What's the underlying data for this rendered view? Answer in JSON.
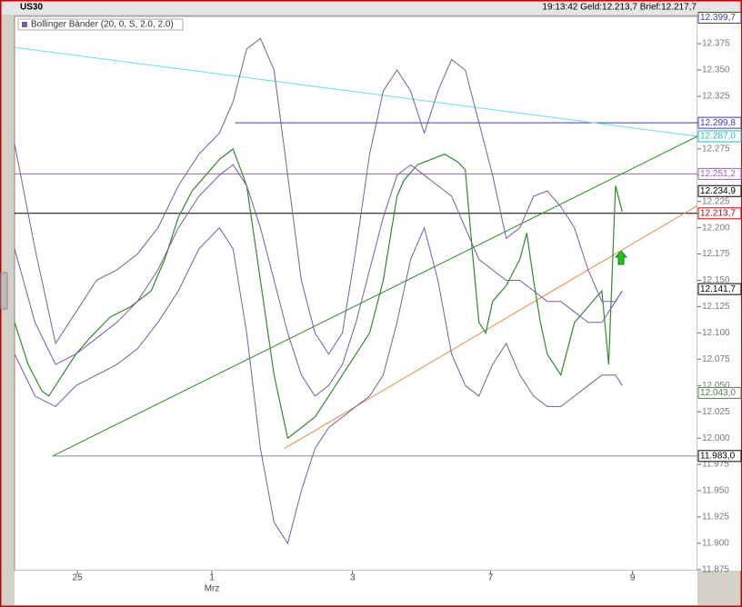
{
  "header": {
    "symbol": "US30",
    "status": "19:13:42  Geld:12.213,7  Brief:12.217,7"
  },
  "chart_data": {
    "type": "line",
    "indicator_label": "Bollinger Bänder (20, 0, S, 2.0, 2.0)",
    "xlim": [
      0,
      100
    ],
    "ylim": [
      11874,
      12401
    ],
    "xticks": [
      {
        "value": 9.2,
        "label": "25"
      },
      {
        "value": 28.9,
        "label": "1"
      },
      {
        "value": 49.5,
        "label": "3"
      },
      {
        "value": 69.7,
        "label": "7"
      },
      {
        "value": 90.5,
        "label": "9"
      }
    ],
    "month_label": "Mrz",
    "yticks": [
      {
        "value": 11875,
        "label": "11.875"
      },
      {
        "value": 11900,
        "label": "11.900"
      },
      {
        "value": 11925,
        "label": "11.925"
      },
      {
        "value": 11950,
        "label": "11.950"
      },
      {
        "value": 11975,
        "label": "11.975"
      },
      {
        "value": 12000,
        "label": "12.000"
      },
      {
        "value": 12025,
        "label": "12.025"
      },
      {
        "value": 12050,
        "label": "12.050"
      },
      {
        "value": 12075,
        "label": "12.075"
      },
      {
        "value": 12100,
        "label": "12.100"
      },
      {
        "value": 12125,
        "label": "12.125"
      },
      {
        "value": 12150,
        "label": "12.150"
      },
      {
        "value": 12175,
        "label": "12.175"
      },
      {
        "value": 12200,
        "label": "12.200"
      },
      {
        "value": 12225,
        "label": "12.225"
      },
      {
        "value": 12250,
        "label": "12.250"
      },
      {
        "value": 12275,
        "label": "12.275"
      },
      {
        "value": 12300,
        "label": "12.300"
      },
      {
        "value": 12325,
        "label": "12.325"
      },
      {
        "value": 12350,
        "label": "12.350"
      },
      {
        "value": 12375,
        "label": "12.375"
      }
    ],
    "series": [
      {
        "color": "#2e8b2e",
        "x": [
          0,
          2,
          4,
          5,
          7,
          9,
          11,
          14,
          17,
          20,
          22,
          24,
          26,
          28,
          30,
          32,
          34,
          36,
          38,
          40,
          42,
          44,
          46,
          48,
          50,
          52,
          54,
          56,
          57,
          59,
          61,
          63,
          65,
          66,
          67,
          68,
          69,
          70,
          72,
          74,
          75,
          76,
          77,
          78,
          80,
          82,
          84,
          86,
          87,
          88,
          89
        ],
        "values": [
          12110,
          12070,
          12045,
          12040,
          12060,
          12080,
          12095,
          12115,
          12125,
          12140,
          12170,
          12210,
          12235,
          12250,
          12265,
          12275,
          12240,
          12150,
          12060,
          12000,
          12010,
          12020,
          12040,
          12060,
          12080,
          12100,
          12150,
          12230,
          12245,
          12260,
          12265,
          12270,
          12262,
          12255,
          12180,
          12110,
          12100,
          12130,
          12145,
          12170,
          12195,
          12150,
          12110,
          12080,
          12060,
          12110,
          12125,
          12140,
          12070,
          12240,
          12215
        ]
      },
      {
        "color": "#7b5aa6",
        "x": [
          0,
          3,
          6,
          9,
          12,
          15,
          18,
          21,
          24,
          27,
          30,
          32,
          34,
          36,
          38,
          40,
          42,
          44,
          46,
          48,
          50,
          52,
          54,
          56,
          58,
          60,
          62,
          64,
          66,
          68,
          70,
          72,
          74,
          76,
          78,
          80,
          82,
          84,
          86,
          88,
          89
        ],
        "values": [
          12280,
          12180,
          12090,
          12120,
          12150,
          12160,
          12175,
          12200,
          12240,
          12270,
          12290,
          12320,
          12370,
          12380,
          12350,
          12250,
          12150,
          12100,
          12080,
          12100,
          12180,
          12270,
          12330,
          12350,
          12330,
          12290,
          12330,
          12360,
          12350,
          12300,
          12250,
          12190,
          12200,
          12230,
          12235,
          12220,
          12200,
          12160,
          12130,
          12130,
          12140
        ]
      },
      {
        "color": "#7b5aa6",
        "x": [
          0,
          3,
          6,
          9,
          12,
          15,
          18,
          21,
          24,
          27,
          30,
          32,
          34,
          36,
          38,
          40,
          42,
          44,
          46,
          48,
          50,
          52,
          54,
          56,
          58,
          60,
          62,
          64,
          66,
          68,
          70,
          72,
          74,
          76,
          78,
          80,
          82,
          84,
          86,
          88,
          89
        ],
        "values": [
          12180,
          12110,
          12070,
          12080,
          12095,
          12110,
          12130,
          12160,
          12200,
          12230,
          12250,
          12260,
          12240,
          12200,
          12150,
          12100,
          12060,
          12040,
          12050,
          12070,
          12110,
          12160,
          12210,
          12250,
          12260,
          12250,
          12240,
          12230,
          12200,
          12170,
          12160,
          12150,
          12150,
          12140,
          12130,
          12130,
          12120,
          12110,
          12110,
          12130,
          12140
        ]
      },
      {
        "color": "#7b5aa6",
        "x": [
          0,
          3,
          6,
          9,
          12,
          15,
          18,
          21,
          24,
          27,
          30,
          32,
          34,
          36,
          38,
          40,
          42,
          44,
          46,
          48,
          50,
          52,
          54,
          56,
          58,
          60,
          62,
          64,
          66,
          68,
          70,
          72,
          74,
          76,
          78,
          80,
          82,
          84,
          86,
          88,
          89
        ],
        "values": [
          12080,
          12040,
          12030,
          12050,
          12060,
          12070,
          12085,
          12110,
          12140,
          12180,
          12200,
          12180,
          12100,
          11990,
          11920,
          11900,
          11950,
          11990,
          12010,
          12020,
          12030,
          12040,
          12060,
          12110,
          12170,
          12200,
          12150,
          12080,
          12050,
          12040,
          12070,
          12090,
          12060,
          12040,
          12030,
          12030,
          12040,
          12050,
          12060,
          12060,
          12050
        ]
      }
    ],
    "trendlines": [
      {
        "color": "#66e0e8",
        "x": [
          0,
          100
        ],
        "values": [
          12371.5,
          12287
        ]
      },
      {
        "color": "#2e8b2e",
        "x": [
          5.6,
          100
        ],
        "values": [
          11983,
          12287
        ]
      },
      {
        "color": "#e88a4a",
        "x": [
          39.5,
          100
        ],
        "values": [
          11990,
          12221
        ]
      }
    ],
    "levels": [
      {
        "value": 12399.7,
        "label": "12.399,7",
        "color": "#3b3bb0"
      },
      {
        "value": 12299.8,
        "label": "12.299,8",
        "color": "#3b3bb0",
        "x0": 32.3
      },
      {
        "value": 12287.0,
        "label": "12.287,0",
        "color": "#20b8c8"
      },
      {
        "value": 12251.2,
        "label": "12.251,2",
        "color": "#a060c0",
        "x0": 0
      },
      {
        "value": 12234.9,
        "label": "12.234,9",
        "color": "#000000"
      },
      {
        "value": 12213.7,
        "label": "12.213,7",
        "color": "#c00000",
        "x0": 0,
        "line_color": "#000000"
      },
      {
        "value": 12141.7,
        "label": "12.141,7",
        "color": "#000000"
      },
      {
        "value": 12043.0,
        "label": "12.043,0",
        "color": "#607060"
      },
      {
        "value": 11983.0,
        "label": "11.983,0",
        "color": "#000000",
        "x0": 5.6,
        "line_color": "#888888"
      }
    ]
  }
}
